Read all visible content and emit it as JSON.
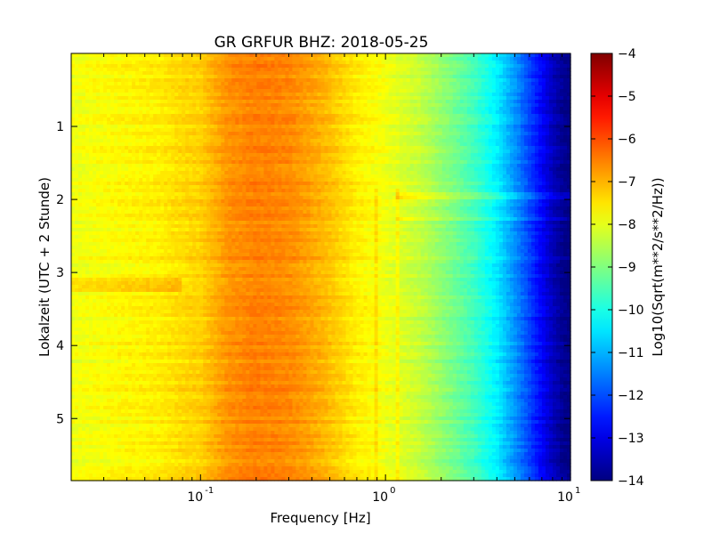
{
  "chart_data": {
    "type": "heatmap",
    "title": "GR GRFUR BHZ: 2018-05-25",
    "xlabel": "Frequency [Hz]",
    "ylabel": "Lokalzeit (UTC + 2 Stunde)",
    "colorbar_label": "Log10(Sqrt(m**2/s**2/Hz))",
    "x_scale": "log",
    "xlim": [
      0.02,
      10
    ],
    "ylim": [
      5.85,
      0.0
    ],
    "y_inverted": true,
    "colormap": "jet",
    "clim": [
      -14,
      -4
    ],
    "x_tick_labels": [
      {
        "value": 0.1,
        "base": "10",
        "exp": "-1"
      },
      {
        "value": 1,
        "base": "10",
        "exp": "0"
      },
      {
        "value": 10,
        "base": "10",
        "exp": "1"
      }
    ],
    "y_ticks": [
      1,
      2,
      3,
      4,
      5
    ],
    "y_tick_labels": [
      "1",
      "2",
      "3",
      "4",
      "5"
    ],
    "colorbar_ticks": [
      -4,
      -5,
      -6,
      -7,
      -8,
      -9,
      -10,
      -11,
      -12,
      -13,
      -14
    ],
    "colorbar_tick_labels": [
      "−4",
      "−5",
      "−6",
      "−7",
      "−8",
      "−9",
      "−10",
      "−11",
      "−12",
      "−13",
      "−14"
    ],
    "spectrum_profile": {
      "frequency_hz": [
        0.02,
        0.04,
        0.06,
        0.08,
        0.1,
        0.14,
        0.2,
        0.3,
        0.45,
        0.7,
        1.0,
        1.5,
        2.0,
        3.0,
        4.0,
        5.0,
        6.0,
        7.0,
        8.0,
        9.0,
        10.0
      ],
      "log10_amplitude": [
        -7.9,
        -7.7,
        -7.6,
        -7.4,
        -7.3,
        -6.7,
        -6.5,
        -6.6,
        -7.0,
        -7.6,
        -7.9,
        -8.3,
        -8.8,
        -9.6,
        -10.4,
        -11.3,
        -12.1,
        -12.8,
        -13.4,
        -13.8,
        -14.0
      ]
    },
    "features": [
      {
        "type": "horizontal_line",
        "time_hours": 1.95,
        "freq_range_hz": [
          1.15,
          10
        ],
        "delta_log10": 0.6
      },
      {
        "type": "horizontal_line",
        "time_hours": 2.28,
        "freq_range_hz": [
          1.15,
          10
        ],
        "delta_log10": 0.3
      },
      {
        "type": "vertical_line",
        "freq_hz": 0.9,
        "time_range_hours": [
          1.85,
          5.85
        ],
        "delta_log10": 0.35
      },
      {
        "type": "vertical_line",
        "freq_hz": 1.15,
        "time_range_hours": [
          1.85,
          5.85
        ],
        "delta_log10": 0.35
      },
      {
        "type": "low_freq_band",
        "time_range_hours": [
          3.05,
          3.25
        ],
        "freq_range_hz": [
          0.02,
          0.08
        ],
        "delta_log10": 0.5
      }
    ]
  }
}
